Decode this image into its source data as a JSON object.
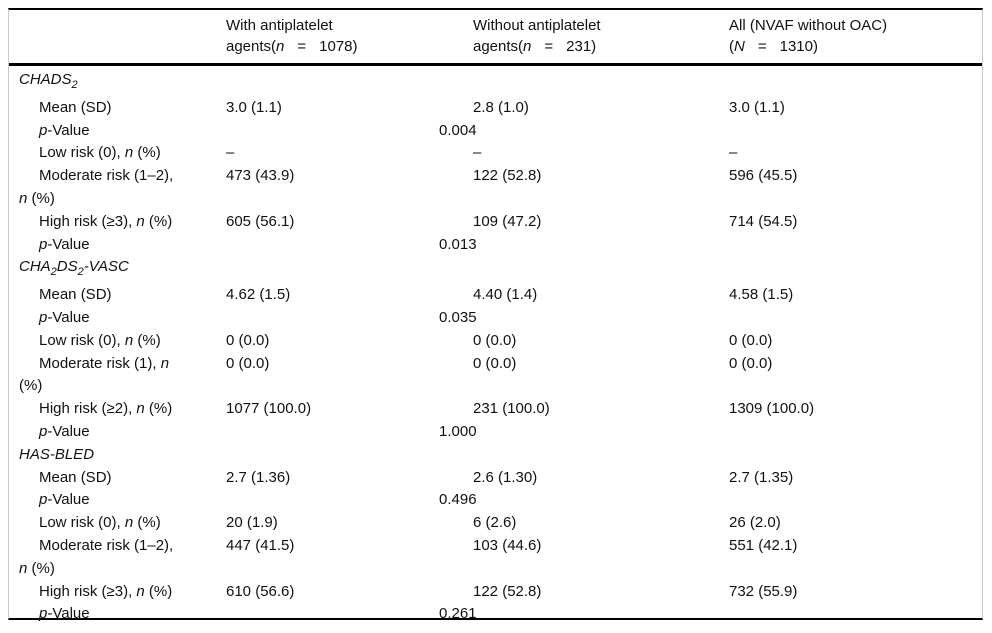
{
  "colors": {
    "rule": "#000000",
    "side_border": "#c9c9c9",
    "text": "#111111"
  },
  "table": {
    "header": {
      "columns": [
        {
          "name": "with-antiplatelet",
          "lines": [
            [
              {
                "t": "With antiplatelet"
              }
            ],
            [
              {
                "t": "agents("
              },
              {
                "t": "n",
                "i": true
              },
              {
                "t": "=",
                "pad": true
              },
              {
                "t": "1078)"
              }
            ]
          ]
        },
        {
          "name": "without-antiplatelet",
          "lines": [
            [
              {
                "t": "Without antiplatelet"
              }
            ],
            [
              {
                "t": "agents("
              },
              {
                "t": "n",
                "i": true
              },
              {
                "t": "=",
                "pad": true
              },
              {
                "t": "231)"
              }
            ]
          ]
        },
        {
          "name": "all-nvaf-without-oac",
          "lines": [
            [
              {
                "t": "All (NVAF without OAC)"
              }
            ],
            [
              {
                "t": "("
              },
              {
                "t": "N",
                "i": true
              },
              {
                "t": "=",
                "pad": true
              },
              {
                "t": "1310)"
              }
            ]
          ]
        }
      ]
    },
    "sections": [
      {
        "title": [
          {
            "t": "CHADS",
            "i": true
          },
          {
            "t": "2",
            "i": true,
            "sub": true
          }
        ],
        "rows": [
          {
            "label": [
              [
                {
                  "t": "Mean (SD)"
                }
              ]
            ],
            "c1": "3.0 (1.1)",
            "c2": "2.8 (1.0)",
            "c3": "3.0 (1.1)"
          },
          {
            "label": [
              [
                {
                  "t": "p",
                  "i": true
                },
                {
                  "t": "-Value"
                }
              ]
            ],
            "p": "0.004"
          },
          {
            "label": [
              [
                {
                  "t": "Low risk (0), "
                },
                {
                  "t": "n",
                  "i": true
                },
                {
                  "t": " (%)"
                }
              ]
            ],
            "c1": "–",
            "c2": "–",
            "c3": "–"
          },
          {
            "label": [
              [
                {
                  "t": "Moderate risk (1–2),"
                }
              ],
              [
                {
                  "t": "n",
                  "i": true
                },
                {
                  "t": " (%)"
                }
              ]
            ],
            "c1": "473 (43.9)",
            "c2": "122 (52.8)",
            "c3": "596 (45.5)"
          },
          {
            "label": [
              [
                {
                  "t": "High risk (≥3), "
                },
                {
                  "t": "n",
                  "i": true
                },
                {
                  "t": " (%)"
                }
              ]
            ],
            "c1": "605 (56.1)",
            "c2": "109 (47.2)",
            "c3": "714 (54.5)"
          },
          {
            "label": [
              [
                {
                  "t": "p",
                  "i": true
                },
                {
                  "t": "-Value"
                }
              ]
            ],
            "p": "0.013"
          }
        ]
      },
      {
        "title": [
          {
            "t": "CHA",
            "i": true
          },
          {
            "t": "2",
            "i": true,
            "sub": true
          },
          {
            "t": "DS",
            "i": true
          },
          {
            "t": "2",
            "i": true,
            "sub": true
          },
          {
            "t": "-VASC",
            "i": true
          }
        ],
        "rows": [
          {
            "label": [
              [
                {
                  "t": "Mean (SD)"
                }
              ]
            ],
            "c1": "4.62 (1.5)",
            "c2": "4.40 (1.4)",
            "c3": "4.58 (1.5)"
          },
          {
            "label": [
              [
                {
                  "t": "p",
                  "i": true
                },
                {
                  "t": "-Value"
                }
              ]
            ],
            "p": "0.035"
          },
          {
            "label": [
              [
                {
                  "t": "Low risk (0), "
                },
                {
                  "t": "n",
                  "i": true
                },
                {
                  "t": " (%)"
                }
              ]
            ],
            "c1": "0 (0.0)",
            "c2": "0 (0.0)",
            "c3": "0 (0.0)"
          },
          {
            "label": [
              [
                {
                  "t": "Moderate risk (1), "
                },
                {
                  "t": "n",
                  "i": true
                }
              ],
              [
                {
                  "t": "(%)"
                }
              ]
            ],
            "c1": "0 (0.0)",
            "c2": "0 (0.0)",
            "c3": "0 (0.0)"
          },
          {
            "label": [
              [
                {
                  "t": "High risk (≥2), "
                },
                {
                  "t": "n",
                  "i": true
                },
                {
                  "t": " (%)"
                }
              ]
            ],
            "c1": "1077 (100.0)",
            "c2": "231 (100.0)",
            "c3": "1309 (100.0)"
          },
          {
            "label": [
              [
                {
                  "t": "p",
                  "i": true
                },
                {
                  "t": "-Value"
                }
              ]
            ],
            "p": "1.000"
          }
        ]
      },
      {
        "title": [
          {
            "t": "HAS-BLED",
            "i": true
          }
        ],
        "rows": [
          {
            "label": [
              [
                {
                  "t": "Mean (SD)"
                }
              ]
            ],
            "c1": "2.7 (1.36)",
            "c2": "2.6 (1.30)",
            "c3": "2.7 (1.35)"
          },
          {
            "label": [
              [
                {
                  "t": "p",
                  "i": true
                },
                {
                  "t": "-Value"
                }
              ]
            ],
            "p": "0.496"
          },
          {
            "label": [
              [
                {
                  "t": "Low risk (0), "
                },
                {
                  "t": "n",
                  "i": true
                },
                {
                  "t": " (%)"
                }
              ]
            ],
            "c1": "20 (1.9)",
            "c2": "6 (2.6)",
            "c3": "26 (2.0)"
          },
          {
            "label": [
              [
                {
                  "t": "Moderate risk (1–2),"
                }
              ],
              [
                {
                  "t": "n",
                  "i": true
                },
                {
                  "t": " (%)"
                }
              ]
            ],
            "c1": "447 (41.5)",
            "c2": "103 (44.6)",
            "c3": "551 (42.1)"
          },
          {
            "label": [
              [
                {
                  "t": "High risk (≥3), "
                },
                {
                  "t": "n",
                  "i": true
                },
                {
                  "t": " (%)"
                }
              ]
            ],
            "c1": "610 (56.6)",
            "c2": "122 (52.8)",
            "c3": "732 (55.9)"
          },
          {
            "label": [
              [
                {
                  "t": "p",
                  "i": true
                },
                {
                  "t": "-Value"
                }
              ]
            ],
            "p": "0.261"
          }
        ]
      }
    ]
  }
}
